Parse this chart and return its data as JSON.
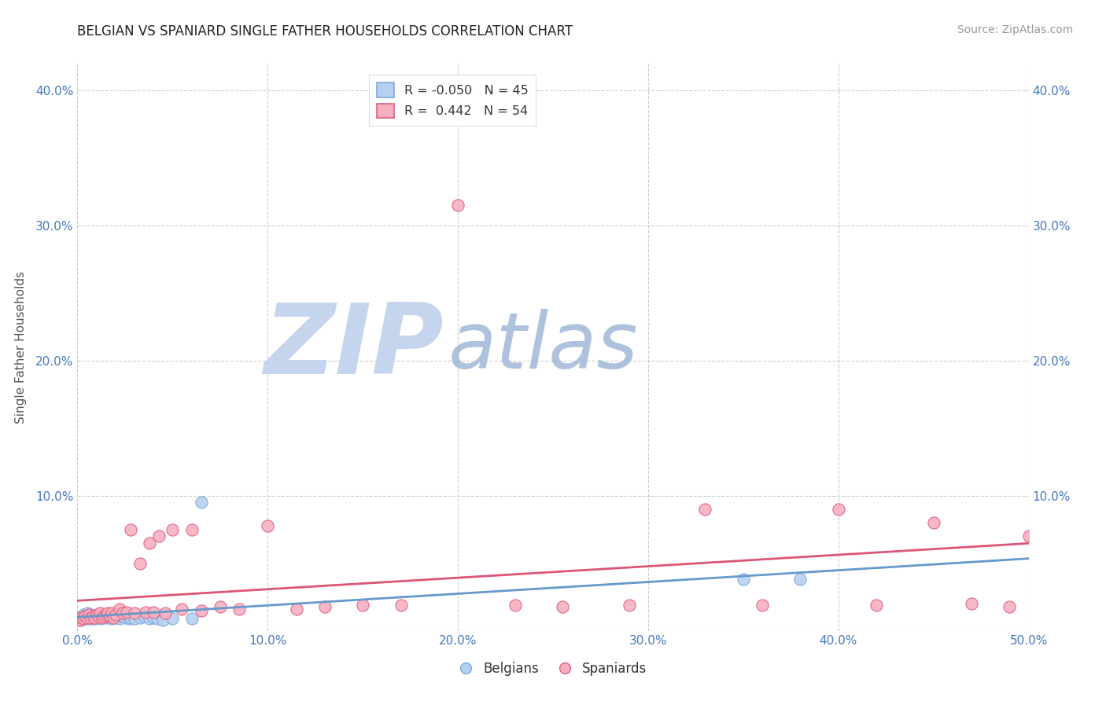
{
  "title": "BELGIAN VS SPANIARD SINGLE FATHER HOUSEHOLDS CORRELATION CHART",
  "source": "Source: ZipAtlas.com",
  "ylabel": "Single Father Households",
  "xlim": [
    0.0,
    0.5
  ],
  "ylim": [
    0.0,
    0.42
  ],
  "xticks": [
    0.0,
    0.1,
    0.2,
    0.3,
    0.4,
    0.5
  ],
  "xtick_labels": [
    "0.0%",
    "10.0%",
    "20.0%",
    "30.0%",
    "40.0%",
    "50.0%"
  ],
  "yticks": [
    0.0,
    0.1,
    0.2,
    0.3,
    0.4
  ],
  "ytick_labels": [
    "",
    "10.0%",
    "20.0%",
    "30.0%",
    "40.0%"
  ],
  "belgian_R": -0.05,
  "belgian_N": 45,
  "spaniard_R": 0.442,
  "spaniard_N": 54,
  "belgian_color": "#b8d0f0",
  "spaniard_color": "#f5b0c0",
  "belgian_edge_color": "#7aaade",
  "spaniard_edge_color": "#e06080",
  "belgian_line_color": "#6699cc",
  "spaniard_line_color": "#dd5577",
  "watermark_zip": "ZIP",
  "watermark_atlas": "atlas",
  "watermark_color_zip": "#c5d5ee",
  "watermark_color_atlas": "#a0b8d8",
  "title_color": "#222222",
  "axis_label_color": "#555555",
  "tick_color": "#4477bb",
  "grid_color": "#cccccc",
  "legend_R1": "R = -0.050",
  "legend_N1": "N = 45",
  "legend_R2": "R =  0.442",
  "legend_N2": "N = 54",
  "belgian_x": [
    0.001,
    0.002,
    0.003,
    0.004,
    0.005,
    0.005,
    0.006,
    0.006,
    0.007,
    0.007,
    0.008,
    0.008,
    0.009,
    0.01,
    0.01,
    0.011,
    0.011,
    0.012,
    0.012,
    0.013,
    0.013,
    0.014,
    0.015,
    0.016,
    0.017,
    0.018,
    0.019,
    0.02,
    0.022,
    0.023,
    0.025,
    0.027,
    0.028,
    0.03,
    0.033,
    0.035,
    0.038,
    0.04,
    0.042,
    0.045,
    0.05,
    0.06,
    0.065,
    0.35,
    0.38
  ],
  "belgian_y": [
    0.01,
    0.008,
    0.012,
    0.01,
    0.009,
    0.013,
    0.011,
    0.01,
    0.009,
    0.012,
    0.01,
    0.011,
    0.009,
    0.011,
    0.01,
    0.012,
    0.01,
    0.011,
    0.009,
    0.01,
    0.011,
    0.012,
    0.01,
    0.011,
    0.01,
    0.009,
    0.011,
    0.01,
    0.009,
    0.011,
    0.01,
    0.009,
    0.01,
    0.009,
    0.01,
    0.011,
    0.009,
    0.01,
    0.009,
    0.008,
    0.009,
    0.009,
    0.095,
    0.038,
    0.038
  ],
  "spaniard_x": [
    0.001,
    0.002,
    0.003,
    0.004,
    0.005,
    0.006,
    0.007,
    0.008,
    0.009,
    0.01,
    0.011,
    0.012,
    0.013,
    0.014,
    0.015,
    0.016,
    0.017,
    0.018,
    0.019,
    0.02,
    0.022,
    0.024,
    0.026,
    0.028,
    0.03,
    0.033,
    0.036,
    0.038,
    0.04,
    0.043,
    0.046,
    0.05,
    0.055,
    0.06,
    0.065,
    0.075,
    0.085,
    0.1,
    0.115,
    0.13,
    0.15,
    0.17,
    0.2,
    0.23,
    0.255,
    0.29,
    0.33,
    0.36,
    0.4,
    0.42,
    0.45,
    0.47,
    0.49,
    0.5
  ],
  "spaniard_y": [
    0.008,
    0.01,
    0.009,
    0.011,
    0.01,
    0.012,
    0.01,
    0.011,
    0.01,
    0.012,
    0.011,
    0.013,
    0.01,
    0.011,
    0.012,
    0.013,
    0.011,
    0.013,
    0.01,
    0.012,
    0.016,
    0.013,
    0.014,
    0.075,
    0.013,
    0.05,
    0.014,
    0.065,
    0.014,
    0.07,
    0.013,
    0.075,
    0.016,
    0.075,
    0.015,
    0.018,
    0.016,
    0.078,
    0.016,
    0.018,
    0.019,
    0.019,
    0.315,
    0.019,
    0.018,
    0.019,
    0.09,
    0.019,
    0.09,
    0.019,
    0.08,
    0.02,
    0.018,
    0.07
  ]
}
